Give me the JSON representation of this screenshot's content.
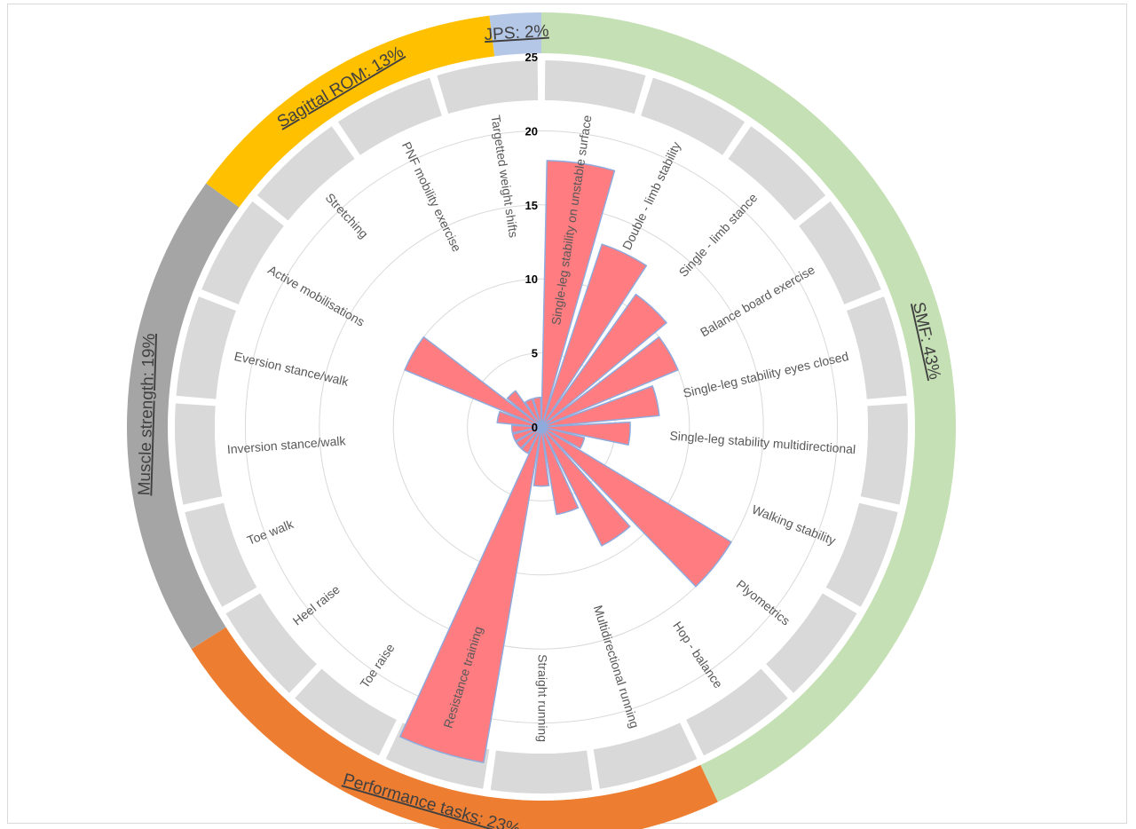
{
  "chart_data": {
    "type": "radial-bar",
    "title": "",
    "rlim": [
      0,
      25
    ],
    "ticks": [
      "0",
      "5",
      "10",
      "15",
      "20",
      "25"
    ],
    "tick_values": [
      0,
      5,
      10,
      15,
      20,
      25
    ],
    "grid": true,
    "bar_color": "#ff7c80",
    "bar_edge_color": "#8faadc",
    "band_color": "#d9d9d9",
    "grid_color": "#d9d9d9",
    "categories": [
      "Single-leg stability on unstable surface",
      "Double - limb stability",
      "Single - limb stance",
      "Balance board exercise",
      "Single-leg stability eyes closed",
      "Single-leg stability multidirectional",
      "Walking stability",
      "Plyometrics",
      "Hop - balance",
      "Multidirectional running",
      "Straight running",
      "Resistance training",
      "Toe raise",
      "Heel raise",
      "Toe walk",
      "Inversion stance/walk",
      "Eversion stance/walk",
      "Active mobilisations",
      "Stretching",
      "PNF mobility exercise",
      "Targetted weight shifts"
    ],
    "values": [
      18,
      13,
      11,
      10,
      8,
      6,
      3,
      15,
      9,
      6,
      4,
      23,
      2,
      2,
      2,
      2,
      3,
      10,
      3,
      2,
      2
    ],
    "groups": [
      {
        "label": "SMF: 43%",
        "color": "#c5e0b4",
        "share": 43
      },
      {
        "label": "Performance tasks: 23%",
        "color": "#ed7d31",
        "share": 23
      },
      {
        "label": "Muscle strength: 19%",
        "color": "#a5a5a5",
        "share": 19
      },
      {
        "label": "Sagittal ROM: 13%",
        "color": "#ffc000",
        "share": 13
      },
      {
        "label": "JPS: 2%",
        "color": "#b4c7e7",
        "share": 2
      }
    ]
  }
}
